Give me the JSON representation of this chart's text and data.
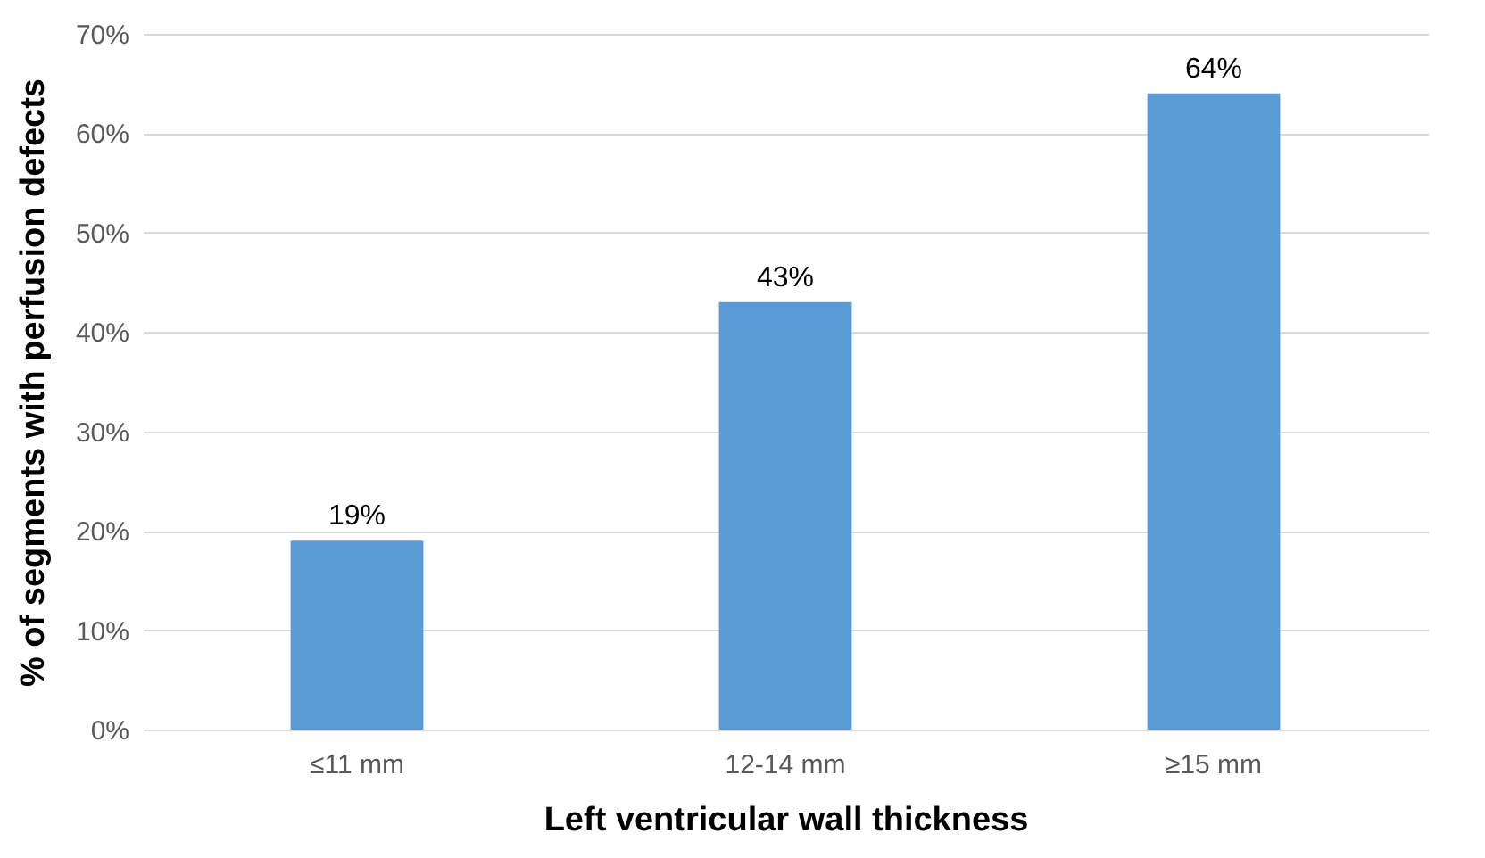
{
  "chart_data": {
    "type": "bar",
    "xlabel": "Left ventricular wall  thickness",
    "ylabel": "% of segments with perfusion defects",
    "categories": [
      "≤11 mm",
      "12-14 mm",
      "≥15 mm"
    ],
    "values": [
      19,
      43,
      64
    ],
    "color": "#5b9bd5",
    "value_labels": [
      "19%",
      "43%",
      "64%"
    ],
    "ylim": [
      0,
      70
    ],
    "yticks": [
      {
        "value": 0,
        "label": "0%"
      },
      {
        "value": 10,
        "label": "10%"
      },
      {
        "value": 20,
        "label": "20%"
      },
      {
        "value": 30,
        "label": "30%"
      },
      {
        "value": 40,
        "label": "40%"
      },
      {
        "value": 50,
        "label": "50%"
      },
      {
        "value": 60,
        "label": "60%"
      },
      {
        "value": 70,
        "label": "70%"
      }
    ],
    "grid": "y"
  }
}
